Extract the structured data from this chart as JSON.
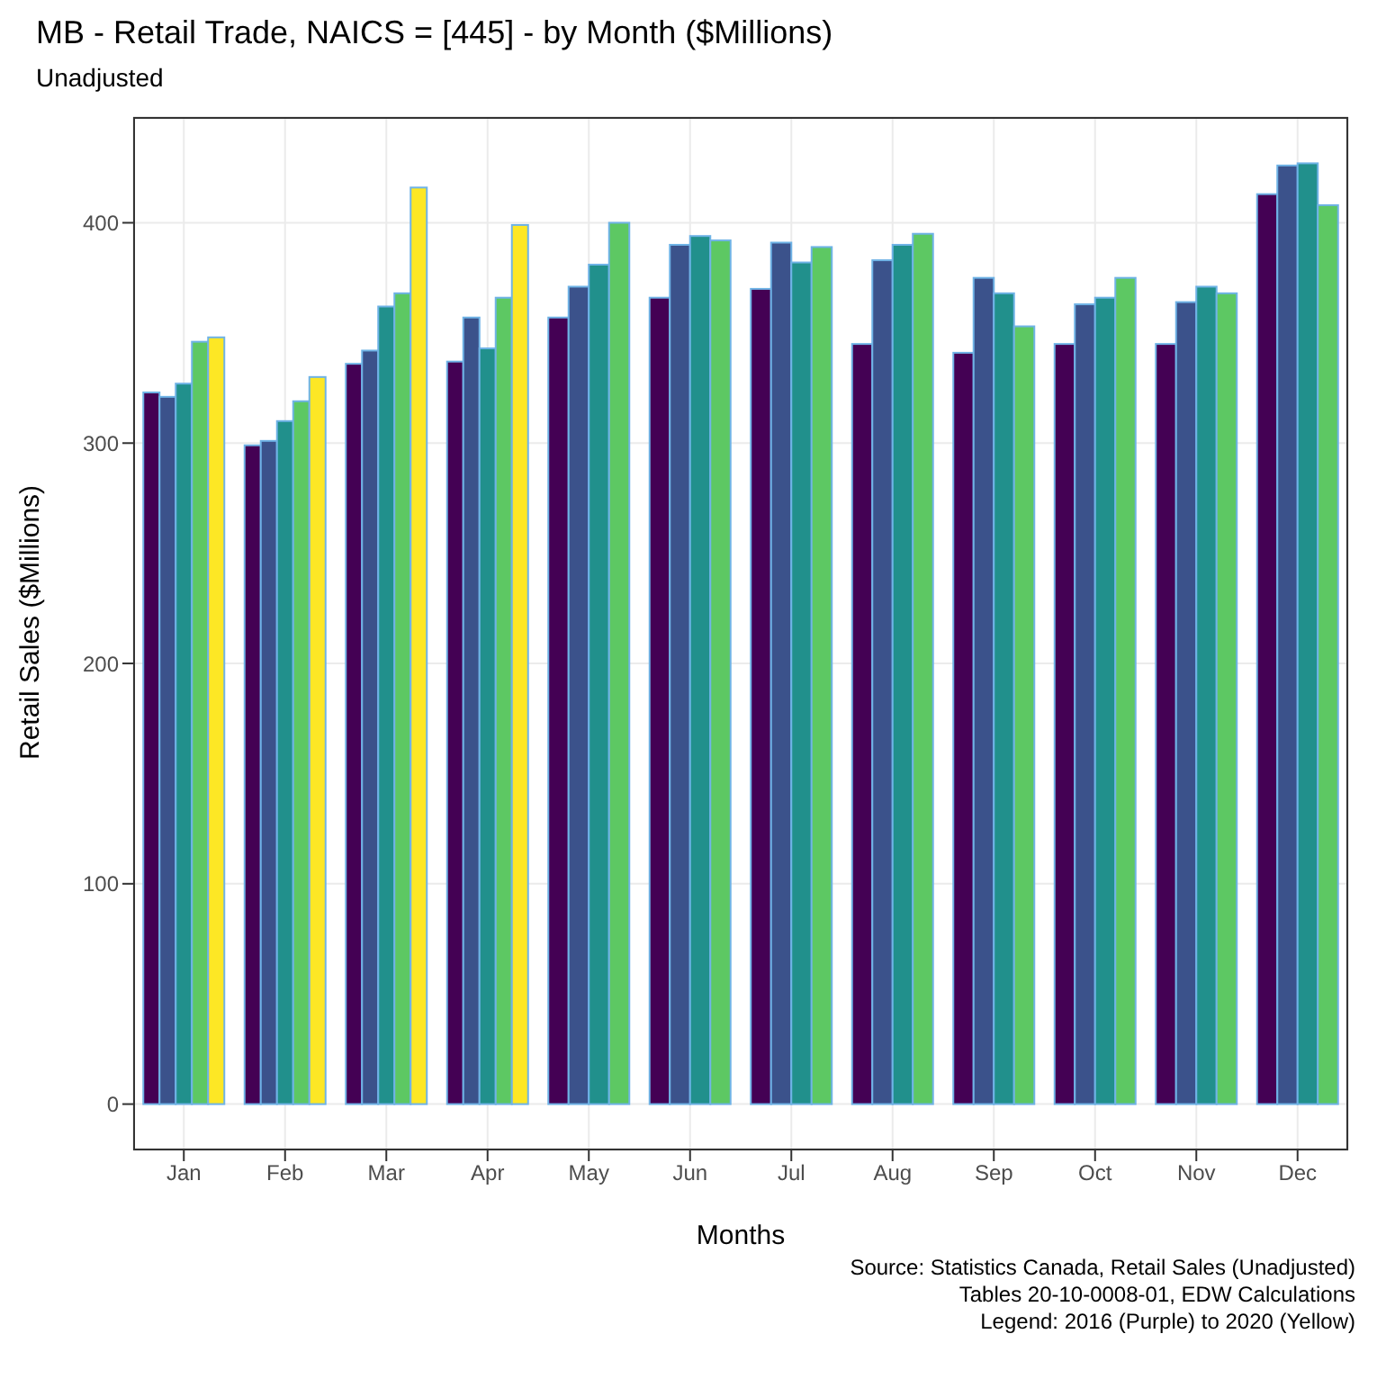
{
  "chart_data": {
    "type": "bar",
    "title": "MB - Retail Trade, NAICS = [445] - by Month ($Millions)",
    "subtitle": "Unadjusted",
    "xlabel": "Months",
    "ylabel": "Retail Sales ($Millions)",
    "annotations": [
      "Source: Statistics Canada, Retail Sales (Unadjusted)",
      "Tables 20-10-0008-01, EDW Calculations",
      "Legend: 2016 (Purple) to 2020 (Yellow)"
    ],
    "categories": [
      "Jan",
      "Feb",
      "Mar",
      "Apr",
      "May",
      "Jun",
      "Jul",
      "Aug",
      "Sep",
      "Oct",
      "Nov",
      "Dec"
    ],
    "series": [
      {
        "color": "#440154",
        "values": [
          323,
          299,
          336,
          337,
          357,
          366,
          370,
          345,
          341,
          345,
          345,
          413
        ]
      },
      {
        "color": "#3b528b",
        "values": [
          321,
          301,
          342,
          357,
          371,
          390,
          391,
          383,
          375,
          363,
          364,
          426
        ]
      },
      {
        "color": "#21908c",
        "values": [
          327,
          310,
          362,
          343,
          381,
          394,
          382,
          390,
          368,
          366,
          371,
          427
        ]
      },
      {
        "color": "#5dc863",
        "values": [
          346,
          319,
          368,
          366,
          400,
          392,
          389,
          395,
          353,
          375,
          368,
          408
        ]
      },
      {
        "color": "#fde725",
        "values": [
          348,
          330,
          416,
          399,
          null,
          null,
          null,
          null,
          null,
          null,
          null,
          null
        ]
      }
    ],
    "ylim": [
      -21,
      448
    ],
    "yticks": [
      0,
      100,
      200,
      300,
      400
    ],
    "grid": true,
    "legend": false
  }
}
